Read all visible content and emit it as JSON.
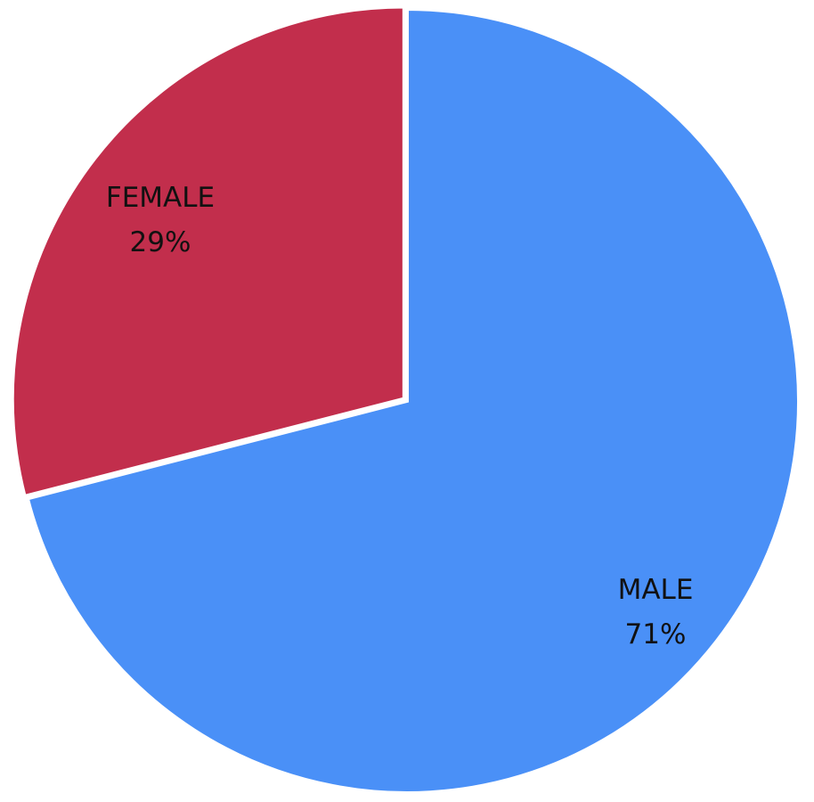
{
  "chart_data": {
    "type": "pie",
    "slices": [
      {
        "label": "FEMALE",
        "value": 29,
        "value_label": "29%",
        "color": "#C22E4C"
      },
      {
        "label": "MALE",
        "value": 71,
        "value_label": "71%",
        "color": "#4A90F7"
      }
    ],
    "start": "top",
    "direction": "counterclockwise",
    "legend": "none"
  }
}
